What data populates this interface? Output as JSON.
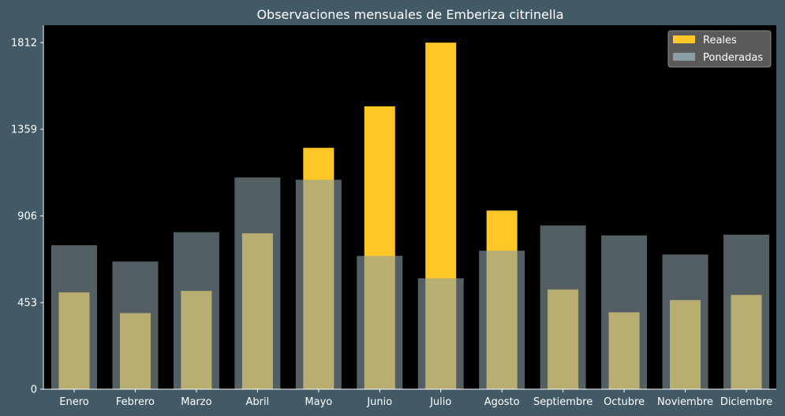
{
  "chart_data": {
    "type": "bar",
    "title": "Observaciones mensuales de Emberiza citrinella",
    "xlabel": "",
    "ylabel": "",
    "categories": [
      "Enero",
      "Febrero",
      "Marzo",
      "Abril",
      "Mayo",
      "Junio",
      "Julio",
      "Agosto",
      "Septiembre",
      "Octubre",
      "Noviembre",
      "Diciembre"
    ],
    "series": [
      {
        "name": "Reales",
        "color": "#ffc627",
        "values": [
          506,
          398,
          514,
          815,
          1262,
          1479,
          1812,
          934,
          521,
          402,
          466,
          493
        ]
      },
      {
        "name": "Ponderadas",
        "color": "#8a9ea4",
        "values": [
          753,
          668,
          821,
          1107,
          1095,
          697,
          580,
          724,
          856,
          804,
          704,
          808
        ]
      }
    ],
    "ylim": [
      0,
      1903
    ],
    "yticks": [
      0,
      453,
      906,
      1359,
      1812
    ],
    "legend_position": "top-right",
    "grid": false,
    "plot_background": "#000000"
  }
}
